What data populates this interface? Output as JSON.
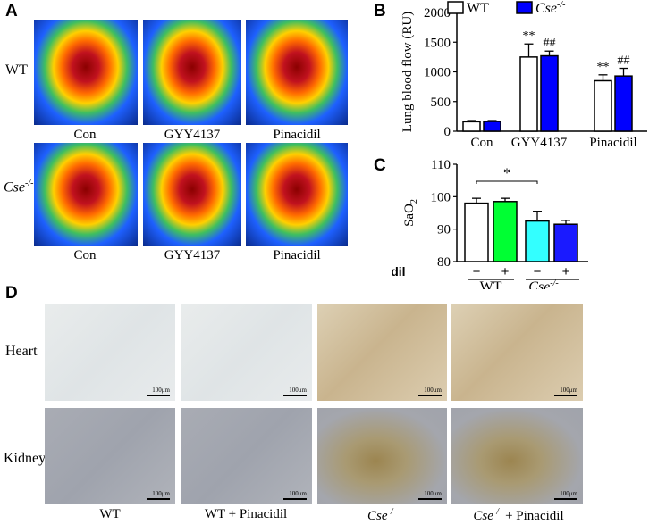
{
  "panelA": {
    "letter": "A",
    "rows": [
      "WT",
      "Cse-/-"
    ],
    "columns": [
      "Con",
      "GYY4137",
      "Pinacidil"
    ]
  },
  "panelB": {
    "letter": "B",
    "ylabel": "Lung blood flow (RU)",
    "legend": [
      "WT",
      "Cse-/-"
    ],
    "chart_data": {
      "type": "bar",
      "categories": [
        "Con",
        "GYY4137",
        "Pinacidil"
      ],
      "series": [
        {
          "name": "WT",
          "values": [
            160,
            1250,
            850
          ],
          "errors": [
            20,
            220,
            100
          ]
        },
        {
          "name": "Cse-/-",
          "values": [
            165,
            1270,
            930
          ],
          "errors": [
            15,
            80,
            130
          ]
        }
      ],
      "ylim": [
        0,
        2000
      ],
      "yticks": [
        "0",
        "500",
        "1000",
        "1500",
        "2000"
      ],
      "annotations_wt": [
        "",
        "**",
        "**"
      ],
      "annotations_cse": [
        "",
        "##",
        "##"
      ],
      "colors": {
        "WT": "#ffffff",
        "Cse-/-": "#0000ff"
      }
    }
  },
  "panelC": {
    "letter": "C",
    "ylabel": "SaO2",
    "chart_data": {
      "type": "bar",
      "categories": [
        "WT -",
        "WT +",
        "Cse-/- -",
        "Cse-/- +"
      ],
      "values": [
        98,
        98.5,
        92.5,
        91.5
      ],
      "errors": [
        1.5,
        1.0,
        3.0,
        1.2
      ],
      "ylim": [
        80,
        110
      ],
      "yticks": [
        "80",
        "90",
        "100",
        "110"
      ],
      "colors": [
        "#ffffff",
        "#00ff33",
        "#33ffff",
        "#1a1aff"
      ],
      "significance": "*"
    },
    "pinacidil_label": "Pinacidil",
    "signs": [
      "−",
      "+",
      "−",
      "+"
    ],
    "groups": [
      "WT",
      "Cse-/-"
    ]
  },
  "panelD": {
    "letter": "D",
    "rows": [
      "Heart",
      "Kidney"
    ],
    "columns": [
      "WT",
      "WT + Pinacidil",
      "Cse-/-",
      "Cse-/- + Pinacidil"
    ],
    "scale": "100μm"
  }
}
